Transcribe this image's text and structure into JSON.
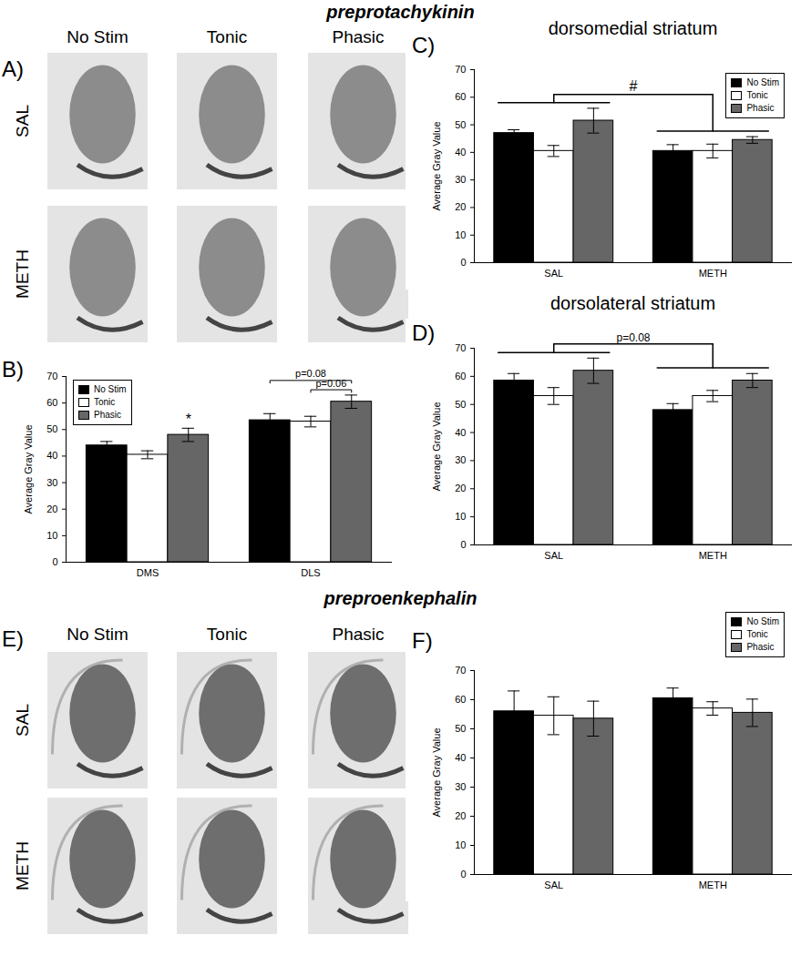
{
  "figure": {
    "sections": [
      {
        "title": "preprotachykinin"
      },
      {
        "title": "preproenkephalin"
      }
    ],
    "image_panels": [
      {
        "panel_label": "A)",
        "columns": [
          "No Stim",
          "Tonic",
          "Phasic"
        ],
        "rows": [
          "SAL",
          "METH"
        ]
      },
      {
        "panel_label": "E)",
        "columns": [
          "No Stim",
          "Tonic",
          "Phasic"
        ],
        "rows": [
          "SAL",
          "METH"
        ]
      }
    ]
  },
  "chart_data": [
    {
      "panel_label": "B)",
      "type": "bar",
      "categories": [
        "DMS",
        "DLS"
      ],
      "y_label": "Average Gray Value",
      "ylim": [
        0,
        70
      ],
      "yticks": [
        0,
        10,
        20,
        30,
        40,
        50,
        60,
        70
      ],
      "legend": "top-left",
      "series": [
        {
          "name": "No Stim",
          "color": "#000000",
          "values": [
            44,
            53.5
          ],
          "errors": [
            1.5,
            2.5
          ]
        },
        {
          "name": "Tonic",
          "color": "#ffffff",
          "values": [
            40.5,
            53
          ],
          "errors": [
            1.5,
            2
          ]
        },
        {
          "name": "Phasic",
          "color": "#666666",
          "values": [
            48,
            60.5
          ],
          "errors": [
            2.5,
            2.5
          ]
        }
      ],
      "annotations": [
        {
          "text": "*",
          "bar": [
            "DMS",
            "Phasic"
          ]
        },
        {
          "text": "p=0.06",
          "between": [
            [
              "DLS",
              "Tonic"
            ],
            [
              "DLS",
              "Phasic"
            ]
          ]
        },
        {
          "text": "p=0.08",
          "between": [
            [
              "DLS",
              "No Stim"
            ],
            [
              "DLS",
              "Phasic"
            ]
          ]
        }
      ]
    },
    {
      "panel_label": "C)",
      "type": "bar",
      "title": "dorsomedial striatum",
      "categories": [
        "SAL",
        "METH"
      ],
      "y_label": "Average Gray Value",
      "ylim": [
        0,
        70
      ],
      "yticks": [
        0,
        10,
        20,
        30,
        40,
        50,
        60,
        70
      ],
      "legend": "top-right",
      "series": [
        {
          "name": "No Stim",
          "color": "#000000",
          "values": [
            47,
            40.5
          ],
          "errors": [
            1.2,
            2.3
          ]
        },
        {
          "name": "Tonic",
          "color": "#ffffff",
          "values": [
            40.5,
            40.5
          ],
          "errors": [
            2,
            2.5
          ]
        },
        {
          "name": "Phasic",
          "color": "#666666",
          "values": [
            51.5,
            44.5
          ],
          "errors": [
            4.5,
            1.2
          ]
        }
      ],
      "annotations": [
        {
          "text": "#",
          "groups": [
            "SAL",
            "METH"
          ]
        }
      ]
    },
    {
      "panel_label": "D)",
      "type": "bar",
      "title": "dorsolateral striatum",
      "categories": [
        "SAL",
        "METH"
      ],
      "y_label": "Average Gray Value",
      "ylim": [
        0,
        70
      ],
      "yticks": [
        0,
        10,
        20,
        30,
        40,
        50,
        60,
        70
      ],
      "series": [
        {
          "name": "No Stim",
          "color": "#000000",
          "values": [
            58.5,
            48
          ],
          "errors": [
            2.5,
            2.3
          ]
        },
        {
          "name": "Tonic",
          "color": "#ffffff",
          "values": [
            53,
            53
          ],
          "errors": [
            3,
            2
          ]
        },
        {
          "name": "Phasic",
          "color": "#666666",
          "values": [
            62,
            58.5
          ],
          "errors": [
            4.5,
            2.5
          ]
        }
      ],
      "annotations": [
        {
          "text": "p=0.08",
          "groups": [
            "SAL",
            "METH"
          ]
        }
      ]
    },
    {
      "panel_label": "F)",
      "type": "bar",
      "categories": [
        "SAL",
        "METH"
      ],
      "y_label": "Average Gray Value",
      "ylim": [
        0,
        70
      ],
      "yticks": [
        0,
        10,
        20,
        30,
        40,
        50,
        60,
        70
      ],
      "legend": "top-right",
      "series": [
        {
          "name": "No Stim",
          "color": "#000000",
          "values": [
            56,
            60.5
          ],
          "errors": [
            7,
            3.5
          ]
        },
        {
          "name": "Tonic",
          "color": "#ffffff",
          "values": [
            54.5,
            57
          ],
          "errors": [
            6.5,
            2.3
          ]
        },
        {
          "name": "Phasic",
          "color": "#666666",
          "values": [
            53.5,
            55.5
          ],
          "errors": [
            6,
            4.7
          ]
        }
      ],
      "annotations": []
    }
  ]
}
